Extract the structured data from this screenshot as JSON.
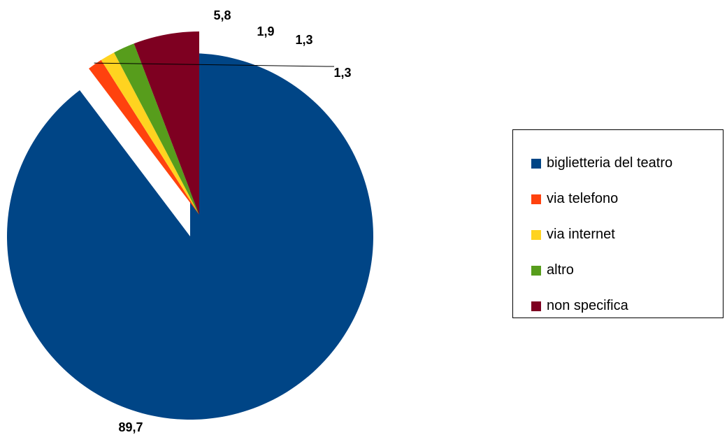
{
  "chart_data": {
    "type": "pie",
    "categories": [
      "biglietteria del teatro",
      "via telefono",
      "via internet",
      "altro",
      "non specifica"
    ],
    "values": [
      89.7,
      1.3,
      1.3,
      1.9,
      5.8
    ],
    "value_labels": [
      "89,7",
      "1,3",
      "1,3",
      "1,9",
      "5,8"
    ],
    "colors": [
      "#004586",
      "#ff420e",
      "#ffd320",
      "#579d1c",
      "#7e0021"
    ],
    "exploded": [
      "via telefono",
      "via internet",
      "altro",
      "non specifica"
    ],
    "legend_placement": "right"
  },
  "legend": {
    "items": [
      {
        "label": "biglietteria del teatro",
        "color": "#004586"
      },
      {
        "label": "via telefono",
        "color": "#ff420e"
      },
      {
        "label": "via internet",
        "color": "#ffd320"
      },
      {
        "label": "altro",
        "color": "#579d1c"
      },
      {
        "label": "non specifica",
        "color": "#7e0021"
      }
    ]
  }
}
